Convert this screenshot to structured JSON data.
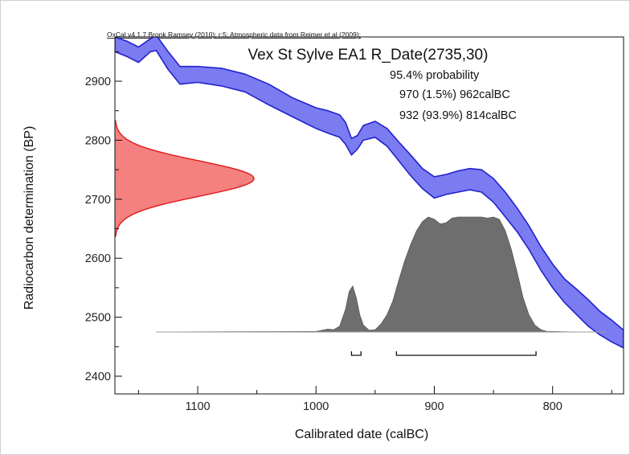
{
  "chart_data": {
    "type": "area",
    "header": "OxCal v4.1.7 Bronk Ramsey (2010); r:5; Atmospheric data from Reimer et al (2009);",
    "title": "Vex St Sylve EA1 R_Date(2735,30)",
    "probability_label": "95.4% probability",
    "ranges": [
      {
        "label": "970 (1.5%) 962calBC",
        "from": 970,
        "to": 962,
        "percent": 1.5
      },
      {
        "label": "932 (93.9%) 814calBC",
        "from": 932,
        "to": 814,
        "percent": 93.9
      }
    ],
    "xlabel": "Calibrated date (calBC)",
    "ylabel": "Radiocarbon determination (BP)",
    "xlim": [
      1170,
      740
    ],
    "ylim": [
      2370,
      2975
    ],
    "x_ticks": [
      1100,
      1000,
      900,
      800
    ],
    "y_ticks": [
      2400,
      2500,
      2600,
      2700,
      2800,
      2900
    ],
    "radiocarbon_date": {
      "mean": 2735,
      "sd": 30
    },
    "calibration_curve": {
      "x": [
        1170,
        1160,
        1150,
        1140,
        1135,
        1125,
        1115,
        1100,
        1080,
        1060,
        1040,
        1020,
        1000,
        990,
        980,
        975,
        970,
        965,
        960,
        950,
        940,
        930,
        920,
        910,
        900,
        890,
        880,
        870,
        860,
        850,
        840,
        830,
        820,
        810,
        800,
        790,
        780,
        770,
        760,
        750,
        740
      ],
      "upper": [
        2975,
        2968,
        2958,
        2972,
        2978,
        2950,
        2925,
        2925,
        2922,
        2912,
        2895,
        2872,
        2855,
        2850,
        2843,
        2830,
        2803,
        2808,
        2825,
        2832,
        2820,
        2797,
        2775,
        2752,
        2738,
        2742,
        2748,
        2752,
        2750,
        2735,
        2712,
        2685,
        2655,
        2620,
        2590,
        2565,
        2548,
        2530,
        2510,
        2495,
        2478
      ],
      "lower": [
        2950,
        2942,
        2932,
        2950,
        2952,
        2920,
        2895,
        2898,
        2892,
        2882,
        2860,
        2840,
        2820,
        2812,
        2805,
        2793,
        2775,
        2785,
        2800,
        2805,
        2790,
        2765,
        2740,
        2718,
        2702,
        2708,
        2712,
        2716,
        2712,
        2695,
        2670,
        2645,
        2615,
        2580,
        2550,
        2525,
        2505,
        2485,
        2470,
        2458,
        2448
      ]
    },
    "calibrated_distribution": {
      "x": [
        1135,
        1000,
        995,
        990,
        985,
        980,
        975,
        972,
        969,
        966,
        963,
        960,
        955,
        950,
        945,
        940,
        935,
        930,
        925,
        920,
        915,
        910,
        905,
        900,
        895,
        890,
        885,
        880,
        875,
        870,
        865,
        860,
        855,
        850,
        845,
        840,
        835,
        830,
        825,
        820,
        815,
        810,
        805,
        780
      ],
      "y": [
        0,
        0.004,
        0.015,
        0.025,
        0.02,
        0.05,
        0.2,
        0.35,
        0.4,
        0.3,
        0.15,
        0.06,
        0.015,
        0.02,
        0.07,
        0.15,
        0.27,
        0.45,
        0.62,
        0.76,
        0.88,
        0.96,
        1.0,
        0.98,
        0.94,
        0.95,
        0.99,
        1.0,
        1.0,
        1.0,
        1.0,
        1.0,
        0.99,
        1.0,
        0.98,
        0.88,
        0.72,
        0.52,
        0.3,
        0.15,
        0.06,
        0.02,
        0.005,
        0
      ]
    }
  }
}
